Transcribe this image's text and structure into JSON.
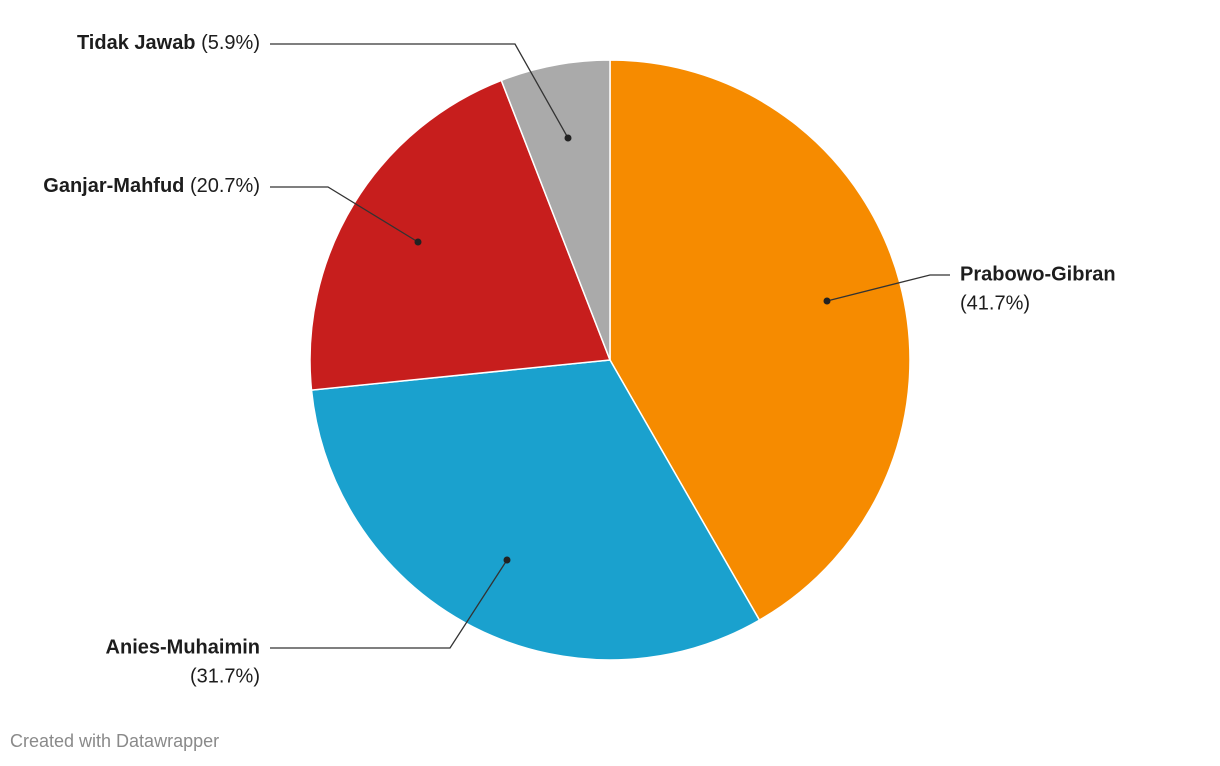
{
  "chart_data": {
    "type": "pie",
    "categories": [
      "Prabowo-Gibran",
      "Anies-Muhaimin",
      "Ganjar-Mahfud",
      "Tidak Jawab"
    ],
    "values": [
      41.7,
      31.7,
      20.7,
      5.9
    ],
    "value_labels": [
      "(41.7%)",
      "(31.7%)",
      "(20.7%)",
      "(5.9%)"
    ],
    "colors": [
      "#f68b00",
      "#1aa1ce",
      "#c71e1d",
      "#aaaaaa"
    ],
    "source": "Created with Datawrapper"
  }
}
